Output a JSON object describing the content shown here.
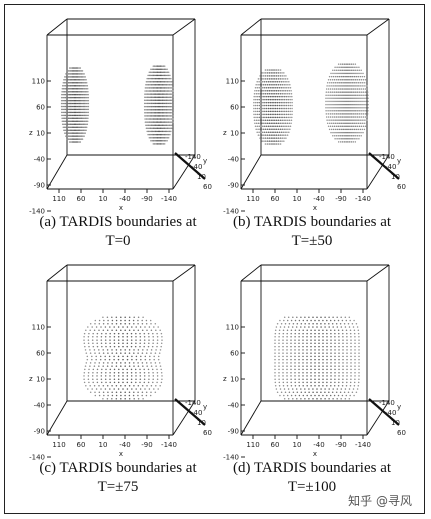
{
  "panels": [
    {
      "caption_line1": "(a) TARDIS boundaries at",
      "caption_line2": "T=0",
      "shape": "two-lobes"
    },
    {
      "caption_line1": "(b) TARDIS boundaries at",
      "caption_line2": "T=±50",
      "shape": "two-lobes-close"
    },
    {
      "caption_line1": "(c) TARDIS boundaries at",
      "caption_line2": "T=±75",
      "shape": "peanut"
    },
    {
      "caption_line1": "(d) TARDIS boundaries at",
      "caption_line2": "T=±100",
      "shape": "rounded-box"
    }
  ],
  "axes": {
    "z_label": "z",
    "x_label": "x",
    "y_label": "y",
    "z_ticks": [
      "110",
      "60",
      "10",
      "-40",
      "-90",
      "-140"
    ],
    "x_ticks": [
      "110",
      "60",
      "10",
      "-40",
      "-90",
      "-140"
    ],
    "y_ticks": [
      "-140",
      "-40",
      "10",
      "60"
    ]
  },
  "watermark": "知乎 @寻风"
}
